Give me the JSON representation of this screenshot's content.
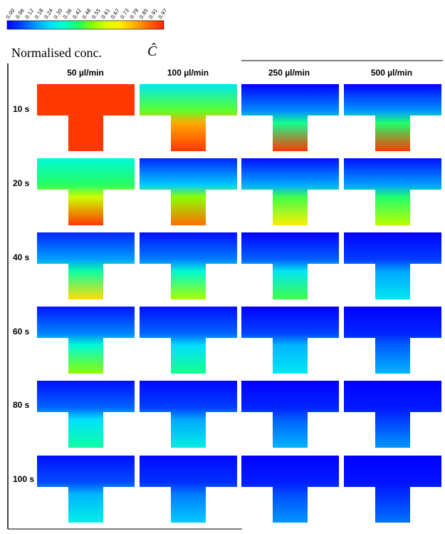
{
  "colorbar": {
    "ticks": [
      "0.00",
      "0.06",
      "0.12",
      "0.18",
      "0.24",
      "0.30",
      "0.36",
      "0.42",
      "0.48",
      "0.55",
      "0.61",
      "0.67",
      "0.73",
      "0.79",
      "0.85",
      "0.91",
      "0.97"
    ],
    "colors": [
      "#0000ff",
      "#0044ff",
      "#0099ff",
      "#00ddff",
      "#00ffcc",
      "#22ff66",
      "#88ff00",
      "#ddff00",
      "#ffee00",
      "#ffaa00",
      "#ff6600",
      "#ff2200"
    ]
  },
  "legend": {
    "title": "Normalised conc.",
    "symbol": "Ĉ"
  },
  "columns": [
    "50 µl/min",
    "100 µl/min",
    "250 µl/min",
    "500 µl/min"
  ],
  "rows": [
    "10 s",
    "20 s",
    "40 s",
    "60 s",
    "80 s",
    "100 s"
  ],
  "grid_levels": [
    [
      [
        0.97,
        0.97,
        0.97
      ],
      [
        0.3,
        0.82,
        0.97
      ],
      [
        0.0,
        0.42,
        0.97
      ],
      [
        0.0,
        0.45,
        0.97
      ]
    ],
    [
      [
        0.35,
        0.62,
        0.97
      ],
      [
        0.05,
        0.55,
        0.9
      ],
      [
        0.02,
        0.48,
        0.72
      ],
      [
        0.02,
        0.45,
        0.6
      ]
    ],
    [
      [
        0.05,
        0.4,
        0.75
      ],
      [
        0.02,
        0.35,
        0.58
      ],
      [
        0.0,
        0.3,
        0.48
      ],
      [
        0.0,
        0.2,
        0.3
      ]
    ],
    [
      [
        0.03,
        0.35,
        0.55
      ],
      [
        0.02,
        0.28,
        0.42
      ],
      [
        0.0,
        0.22,
        0.3
      ],
      [
        0.0,
        0.12,
        0.22
      ]
    ],
    [
      [
        0.02,
        0.28,
        0.4
      ],
      [
        0.01,
        0.2,
        0.32
      ],
      [
        0.0,
        0.12,
        0.22
      ],
      [
        0.0,
        0.08,
        0.18
      ]
    ],
    [
      [
        0.02,
        0.22,
        0.32
      ],
      [
        0.01,
        0.15,
        0.25
      ],
      [
        0.0,
        0.1,
        0.18
      ],
      [
        0.0,
        0.06,
        0.14
      ]
    ]
  ]
}
